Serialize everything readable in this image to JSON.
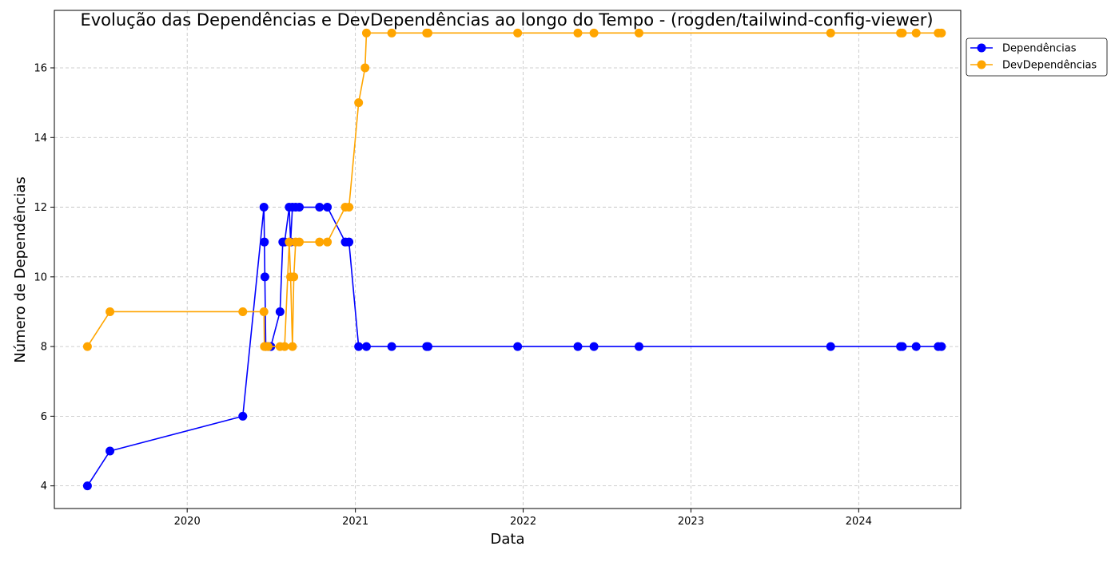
{
  "chart_data": {
    "type": "line",
    "title": "Evolução das Dependências e DevDependências ao longo do Tempo - (rogden/tailwind-config-viewer)",
    "xlabel": "Data",
    "ylabel": "Número de Dependências",
    "x_axis_type": "date",
    "xlim": [
      "2019-03-18",
      "2024-08-10"
    ],
    "ylim": [
      3.35,
      17.65
    ],
    "x_ticks": [
      "2020",
      "2021",
      "2022",
      "2023",
      "2024"
    ],
    "x_tick_dates": [
      "2020-01-01",
      "2021-01-01",
      "2022-01-01",
      "2023-01-01",
      "2024-01-01"
    ],
    "y_ticks": [
      4,
      6,
      8,
      10,
      12,
      14,
      16
    ],
    "grid": true,
    "legend_position": "top-right-outside",
    "series": [
      {
        "name": "Dependências",
        "color": "#0000ff",
        "marker": "circle",
        "points": [
          [
            "2019-05-29",
            4
          ],
          [
            "2019-07-17",
            5
          ],
          [
            "2020-05-01",
            6
          ],
          [
            "2020-06-16",
            12
          ],
          [
            "2020-06-17",
            11
          ],
          [
            "2020-06-18",
            10
          ],
          [
            "2020-06-20",
            8
          ],
          [
            "2020-06-25",
            8
          ],
          [
            "2020-07-01",
            8
          ],
          [
            "2020-07-21",
            9
          ],
          [
            "2020-07-27",
            11
          ],
          [
            "2020-07-31",
            11
          ],
          [
            "2020-08-10",
            12
          ],
          [
            "2020-08-13",
            11
          ],
          [
            "2020-08-17",
            12
          ],
          [
            "2020-08-24",
            12
          ],
          [
            "2020-09-01",
            12
          ],
          [
            "2020-10-15",
            12
          ],
          [
            "2020-11-01",
            12
          ],
          [
            "2020-12-10",
            11
          ],
          [
            "2020-12-18",
            11
          ],
          [
            "2021-01-08",
            8
          ],
          [
            "2021-01-25",
            8
          ],
          [
            "2021-03-21",
            8
          ],
          [
            "2021-06-05",
            8
          ],
          [
            "2021-06-08",
            8
          ],
          [
            "2021-12-20",
            8
          ],
          [
            "2022-04-30",
            8
          ],
          [
            "2022-06-04",
            8
          ],
          [
            "2022-09-10",
            8
          ],
          [
            "2023-11-01",
            8
          ],
          [
            "2024-04-01",
            8
          ],
          [
            "2024-04-05",
            8
          ],
          [
            "2024-05-05",
            8
          ],
          [
            "2024-06-22",
            8
          ],
          [
            "2024-06-29",
            8
          ]
        ]
      },
      {
        "name": "DevDependências",
        "color": "#ffa500",
        "marker": "circle",
        "points": [
          [
            "2019-05-29",
            8
          ],
          [
            "2019-07-17",
            9
          ],
          [
            "2020-05-01",
            9
          ],
          [
            "2020-06-16",
            9
          ],
          [
            "2020-06-17",
            8
          ],
          [
            "2020-06-20",
            8
          ],
          [
            "2020-06-25",
            8
          ],
          [
            "2020-07-21",
            8
          ],
          [
            "2020-07-31",
            8
          ],
          [
            "2020-08-10",
            11
          ],
          [
            "2020-08-13",
            10
          ],
          [
            "2020-08-17",
            8
          ],
          [
            "2020-08-20",
            10
          ],
          [
            "2020-08-24",
            11
          ],
          [
            "2020-09-01",
            11
          ],
          [
            "2020-10-15",
            11
          ],
          [
            "2020-11-01",
            11
          ],
          [
            "2020-12-10",
            12
          ],
          [
            "2020-12-18",
            12
          ],
          [
            "2021-01-08",
            15
          ],
          [
            "2021-01-22",
            16
          ],
          [
            "2021-01-25",
            17
          ],
          [
            "2021-03-21",
            17
          ],
          [
            "2021-06-05",
            17
          ],
          [
            "2021-06-08",
            17
          ],
          [
            "2021-12-20",
            17
          ],
          [
            "2022-04-30",
            17
          ],
          [
            "2022-06-04",
            17
          ],
          [
            "2022-09-10",
            17
          ],
          [
            "2023-11-01",
            17
          ],
          [
            "2024-04-01",
            17
          ],
          [
            "2024-04-05",
            17
          ],
          [
            "2024-05-05",
            17
          ],
          [
            "2024-06-22",
            17
          ],
          [
            "2024-06-29",
            17
          ]
        ]
      }
    ]
  }
}
